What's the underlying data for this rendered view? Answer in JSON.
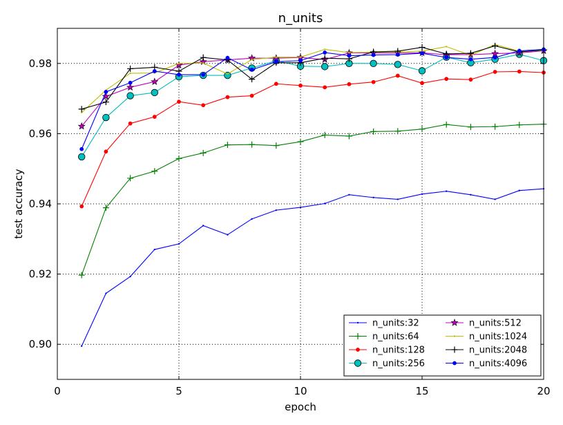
{
  "chart_data": {
    "type": "line",
    "title": "n_units",
    "xlabel": "epoch",
    "ylabel": "test accuracy",
    "xlim": [
      0,
      20
    ],
    "ylim": [
      0.89,
      0.99
    ],
    "xticks": [
      0,
      5,
      10,
      15,
      20
    ],
    "xtick_labels": [
      "0",
      "5",
      "10",
      "15",
      "20"
    ],
    "yticks": [
      0.9,
      0.92,
      0.94,
      0.96,
      0.98
    ],
    "ytick_labels": [
      "0.90",
      "0.92",
      "0.94",
      "0.96",
      "0.98"
    ],
    "grid": true,
    "legend_position": "lower-right",
    "x": [
      1,
      2,
      3,
      4,
      5,
      6,
      7,
      8,
      9,
      10,
      11,
      12,
      13,
      14,
      15,
      16,
      17,
      18,
      19,
      20
    ],
    "series": [
      {
        "name": "n_units:32",
        "color": "#0000ff",
        "marker": "point",
        "values": [
          0.8995,
          0.9145,
          0.9193,
          0.927,
          0.9286,
          0.9338,
          0.9312,
          0.9357,
          0.9382,
          0.939,
          0.9401,
          0.9426,
          0.9418,
          0.9413,
          0.9428,
          0.9436,
          0.9426,
          0.9413,
          0.9438,
          0.9443
        ]
      },
      {
        "name": "n_units:64",
        "color": "#008000",
        "marker": "plus",
        "values": [
          0.9197,
          0.9389,
          0.9473,
          0.9493,
          0.9529,
          0.9545,
          0.9568,
          0.9569,
          0.9566,
          0.9577,
          0.9596,
          0.9593,
          0.9606,
          0.9607,
          0.9613,
          0.9626,
          0.9619,
          0.962,
          0.9625,
          0.9627
        ]
      },
      {
        "name": "n_units:128",
        "color": "#ff0000",
        "marker": "dot",
        "values": [
          0.9393,
          0.9549,
          0.9629,
          0.9648,
          0.9691,
          0.9681,
          0.9704,
          0.9708,
          0.9742,
          0.9737,
          0.9732,
          0.9741,
          0.9747,
          0.9765,
          0.9744,
          0.9756,
          0.9754,
          0.9776,
          0.9777,
          0.9774
        ]
      },
      {
        "name": "n_units:256",
        "color": "#00bfbf",
        "marker": "circle",
        "values": [
          0.9534,
          0.9646,
          0.9708,
          0.9717,
          0.9762,
          0.9766,
          0.9766,
          0.9787,
          0.9808,
          0.9792,
          0.9791,
          0.98,
          0.98,
          0.9797,
          0.9779,
          0.9818,
          0.9802,
          0.9812,
          0.9826,
          0.9808
        ]
      },
      {
        "name": "n_units:512",
        "color": "#bf00bf",
        "marker": "star",
        "values": [
          0.9621,
          0.9706,
          0.9732,
          0.9748,
          0.9795,
          0.9805,
          0.981,
          0.9815,
          0.9815,
          0.9817,
          0.9811,
          0.983,
          0.983,
          0.983,
          0.983,
          0.9825,
          0.9825,
          0.9828,
          0.983,
          0.9836
        ]
      },
      {
        "name": "n_units:1024",
        "color": "#bfbf00",
        "marker": "point",
        "values": [
          0.966,
          0.9724,
          0.9772,
          0.9773,
          0.98,
          0.9801,
          0.977,
          0.9811,
          0.9818,
          0.9818,
          0.984,
          0.9831,
          0.9832,
          0.9833,
          0.9835,
          0.9848,
          0.9823,
          0.9854,
          0.9835,
          0.9836
        ]
      },
      {
        "name": "n_units:2048",
        "color": "#000000",
        "marker": "plus",
        "values": [
          0.967,
          0.969,
          0.9785,
          0.9789,
          0.9778,
          0.9817,
          0.981,
          0.9755,
          0.9802,
          0.9802,
          0.9815,
          0.9813,
          0.9833,
          0.9835,
          0.9846,
          0.9827,
          0.9829,
          0.985,
          0.9833,
          0.9838
        ]
      },
      {
        "name": "n_units:4096",
        "color": "#0000ff",
        "marker": "dot",
        "values": [
          0.9556,
          0.9719,
          0.9745,
          0.9778,
          0.9768,
          0.9768,
          0.9816,
          0.9782,
          0.9805,
          0.9808,
          0.9831,
          0.9822,
          0.9824,
          0.9825,
          0.9829,
          0.9817,
          0.9812,
          0.9817,
          0.9836,
          0.984
        ]
      }
    ]
  }
}
